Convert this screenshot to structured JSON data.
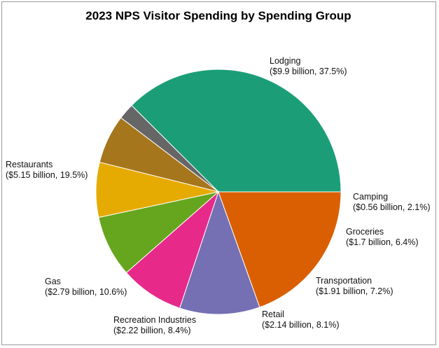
{
  "chart_data": {
    "type": "pie",
    "title": "2023 NPS Visitor Spending by Spending Group",
    "slices": [
      {
        "name": "Lodging",
        "label": "($9.9 billion, 37.5%)",
        "value": 9.9,
        "percent": 37.5,
        "color": "#1b9e77"
      },
      {
        "name": "Camping",
        "label": "($0.56 billion, 2.1%)",
        "value": 0.56,
        "percent": 2.1,
        "color": "#666666"
      },
      {
        "name": "Groceries",
        "label": "($1.7 billion, 6.4%)",
        "value": 1.7,
        "percent": 6.4,
        "color": "#a6761d"
      },
      {
        "name": "Transportation",
        "label": "($1.91 billion, 7.2%)",
        "value": 1.91,
        "percent": 7.2,
        "color": "#e6ab02"
      },
      {
        "name": "Retail",
        "label": "($2.14 billion, 8.1%)",
        "value": 2.14,
        "percent": 8.1,
        "color": "#66a61e"
      },
      {
        "name": "Recreation Industries",
        "label": "($2.22 billion, 8.4%)",
        "value": 2.22,
        "percent": 8.4,
        "color": "#e7298a"
      },
      {
        "name": "Gas",
        "label": "($2.79 billion, 10.6%)",
        "value": 2.79,
        "percent": 10.6,
        "color": "#7570b3"
      },
      {
        "name": "Restaurants",
        "label": "($5.15 billion, 19.5%)",
        "value": 5.15,
        "percent": 19.5,
        "color": "#d95f02"
      }
    ]
  }
}
